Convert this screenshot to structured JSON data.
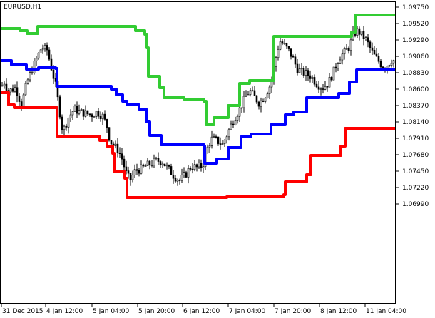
{
  "chart_data": {
    "type": "line",
    "symbol": "EURUSD,H1",
    "y_ticks": [
      "1.09750",
      "1.09520",
      "1.09290",
      "1.09060",
      "1.08830",
      "1.08600",
      "1.08370",
      "1.08140",
      "1.07910",
      "1.07680",
      "1.07450",
      "1.07220",
      "1.06990"
    ],
    "x_ticks": [
      "31 Dec 2015",
      "4 Jan 12:00",
      "5 Jan 04:00",
      "5 Jan 20:00",
      "6 Jan 12:00",
      "7 Jan 04:00",
      "7 Jan 20:00",
      "8 Jan 12:00",
      "11 Jan 04:00"
    ],
    "ylim": [
      1.0689,
      1.0985
    ],
    "grid": false,
    "series": [
      {
        "color": "#33cc33",
        "steps": [
          [
            0,
            1.0945
          ],
          [
            28,
            1.0942
          ],
          [
            38,
            1.0938
          ],
          [
            53,
            1.0948
          ],
          [
            190,
            1.0942
          ],
          [
            203,
            1.0937
          ],
          [
            206,
            1.0918
          ],
          [
            208,
            1.0878
          ],
          [
            224,
            1.0862
          ],
          [
            230,
            1.0848
          ],
          [
            258,
            1.0846
          ],
          [
            286,
            1.0843
          ],
          [
            289,
            1.081
          ],
          [
            300,
            1.082
          ],
          [
            320,
            1.0837
          ],
          [
            336,
            1.0868
          ],
          [
            350,
            1.0872
          ],
          [
            384,
            1.0934
          ],
          [
            493,
            1.094
          ],
          [
            498,
            1.0964
          ],
          [
            555,
            1.0964
          ]
        ]
      },
      {
        "color": "#0000ff",
        "steps": [
          [
            0,
            1.09
          ],
          [
            16,
            1.0894
          ],
          [
            37,
            1.0888
          ],
          [
            54,
            1.089
          ],
          [
            78,
            1.0889
          ],
          [
            80,
            1.0864
          ],
          [
            156,
            1.086
          ],
          [
            163,
            1.0852
          ],
          [
            172,
            1.0843
          ],
          [
            178,
            1.0838
          ],
          [
            195,
            1.0832
          ],
          [
            205,
            1.0814
          ],
          [
            210,
            1.0795
          ],
          [
            226,
            1.0782
          ],
          [
            286,
            1.078
          ],
          [
            287,
            1.0756
          ],
          [
            304,
            1.0762
          ],
          [
            320,
            1.0778
          ],
          [
            338,
            1.0793
          ],
          [
            352,
            1.0797
          ],
          [
            380,
            1.081
          ],
          [
            400,
            1.0824
          ],
          [
            412,
            1.0828
          ],
          [
            430,
            1.0848
          ],
          [
            475,
            1.0854
          ],
          [
            490,
            1.087
          ],
          [
            500,
            1.0887
          ],
          [
            555,
            1.0887
          ]
        ]
      },
      {
        "color": "#ff0000",
        "steps": [
          [
            0,
            1.0855
          ],
          [
            12,
            1.0838
          ],
          [
            20,
            1.0834
          ],
          [
            80,
            1.0809
          ],
          [
            80,
            1.0794
          ],
          [
            140,
            1.0788
          ],
          [
            150,
            1.078
          ],
          [
            158,
            1.077
          ],
          [
            160,
            1.0744
          ],
          [
            175,
            1.0735
          ],
          [
            178,
            1.0708
          ],
          [
            318,
            1.0709
          ],
          [
            398,
            1.0712
          ],
          [
            400,
            1.073
          ],
          [
            430,
            1.074
          ],
          [
            436,
            1.0767
          ],
          [
            478,
            1.078
          ],
          [
            484,
            1.0805
          ],
          [
            555,
            1.0805
          ]
        ]
      }
    ],
    "close_path": [
      [
        0,
        1.086
      ],
      [
        6,
        1.087
      ],
      [
        12,
        1.0857
      ],
      [
        22,
        1.0862
      ],
      [
        30,
        1.0838
      ],
      [
        38,
        1.087
      ],
      [
        48,
        1.0895
      ],
      [
        58,
        1.0918
      ],
      [
        66,
        1.0915
      ],
      [
        72,
        1.089
      ],
      [
        78,
        1.0865
      ],
      [
        82,
        1.084
      ],
      [
        88,
        1.08
      ],
      [
        96,
        1.082
      ],
      [
        104,
        1.0832
      ],
      [
        112,
        1.0828
      ],
      [
        120,
        1.0826
      ],
      [
        128,
        1.0824
      ],
      [
        136,
        1.0828
      ],
      [
        144,
        1.0822
      ],
      [
        150,
        1.0808
      ],
      [
        154,
        1.0788
      ],
      [
        160,
        1.078
      ],
      [
        166,
        1.0774
      ],
      [
        172,
        1.076
      ],
      [
        176,
        1.0744
      ],
      [
        182,
        1.0732
      ],
      [
        190,
        1.0746
      ],
      [
        198,
        1.0748
      ],
      [
        204,
        1.0752
      ],
      [
        212,
        1.0756
      ],
      [
        220,
        1.076
      ],
      [
        228,
        1.0758
      ],
      [
        236,
        1.0748
      ],
      [
        244,
        1.0738
      ],
      [
        252,
        1.0732
      ],
      [
        260,
        1.074
      ],
      [
        268,
        1.0752
      ],
      [
        276,
        1.075
      ],
      [
        284,
        1.0752
      ],
      [
        290,
        1.0775
      ],
      [
        296,
        1.079
      ],
      [
        304,
        1.0788
      ],
      [
        312,
        1.0782
      ],
      [
        320,
        1.08
      ],
      [
        328,
        1.0818
      ],
      [
        336,
        1.0832
      ],
      [
        344,
        1.0848
      ],
      [
        350,
        1.0858
      ],
      [
        356,
        1.085
      ],
      [
        364,
        1.084
      ],
      [
        372,
        1.0852
      ],
      [
        380,
        1.0868
      ],
      [
        386,
        1.09
      ],
      [
        392,
        1.0928
      ],
      [
        398,
        1.0922
      ],
      [
        404,
        1.0915
      ],
      [
        410,
        1.0905
      ],
      [
        416,
        1.089
      ],
      [
        422,
        1.0884
      ],
      [
        428,
        1.0882
      ],
      [
        436,
        1.0878
      ],
      [
        444,
        1.0868
      ],
      [
        452,
        1.0862
      ],
      [
        460,
        1.0868
      ],
      [
        468,
        1.0885
      ],
      [
        476,
        1.0905
      ],
      [
        484,
        1.0912
      ],
      [
        490,
        1.092
      ],
      [
        496,
        1.0938
      ],
      [
        502,
        1.0942
      ],
      [
        508,
        1.0935
      ],
      [
        514,
        1.0928
      ],
      [
        520,
        1.0915
      ],
      [
        526,
        1.0905
      ],
      [
        532,
        1.0898
      ],
      [
        538,
        1.089
      ],
      [
        544,
        1.0895
      ],
      [
        550,
        1.0902
      ],
      [
        555,
        1.0898
      ]
    ]
  }
}
